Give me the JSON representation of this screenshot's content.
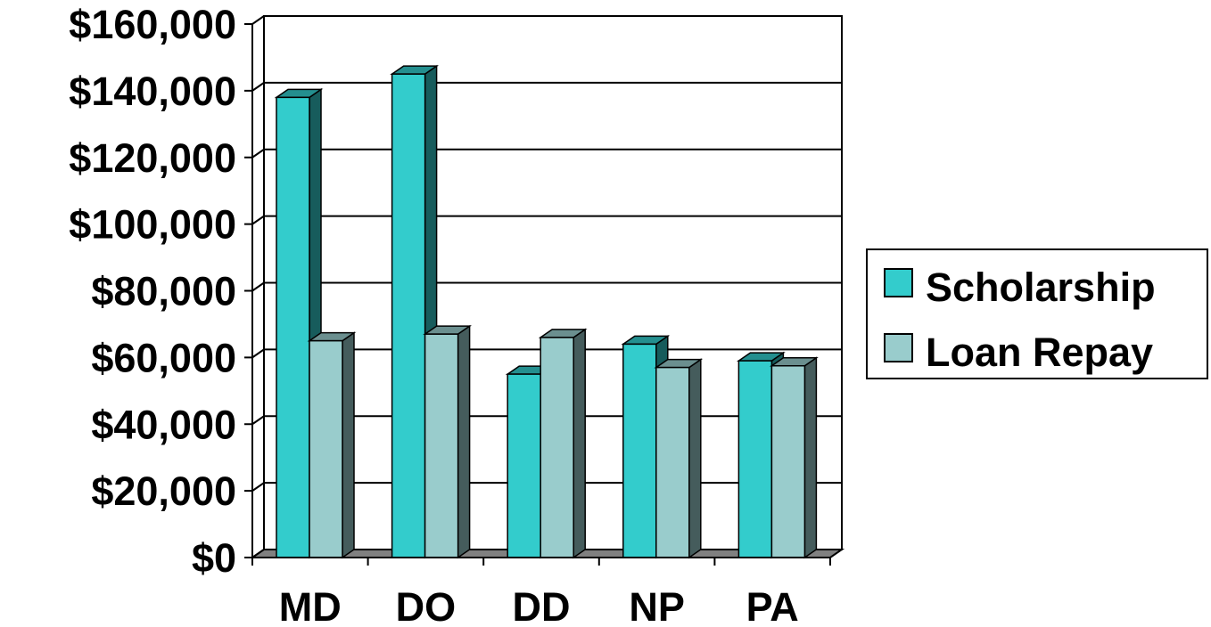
{
  "chart_data": {
    "type": "bar",
    "title": "",
    "xlabel": "",
    "ylabel": "",
    "categories": [
      "MD",
      "DO",
      "DD",
      "NP",
      "PA"
    ],
    "series": [
      {
        "name": "Scholarship",
        "values": [
          138000,
          145000,
          55000,
          64000,
          59000
        ],
        "color": "#33CCCC"
      },
      {
        "name": "Loan Repay",
        "values": [
          65000,
          67000,
          66000,
          57000,
          57500
        ],
        "color": "#99CCCC"
      }
    ],
    "ylim": [
      0,
      160000
    ],
    "y_ticks": [
      {
        "value": 0,
        "label": "$0"
      },
      {
        "value": 20000,
        "label": "$20,000"
      },
      {
        "value": 40000,
        "label": "$40,000"
      },
      {
        "value": 60000,
        "label": "$60,000"
      },
      {
        "value": 80000,
        "label": "$80,000"
      },
      {
        "value": 100000,
        "label": "$100,000"
      },
      {
        "value": 120000,
        "label": "$120,000"
      },
      {
        "value": 140000,
        "label": "$140,000"
      },
      {
        "value": 160000,
        "label": "$160,000"
      }
    ],
    "grid": true,
    "style": "3d",
    "legend": {
      "position": "right",
      "entries": [
        "Scholarship",
        "Loan Repay"
      ]
    }
  }
}
